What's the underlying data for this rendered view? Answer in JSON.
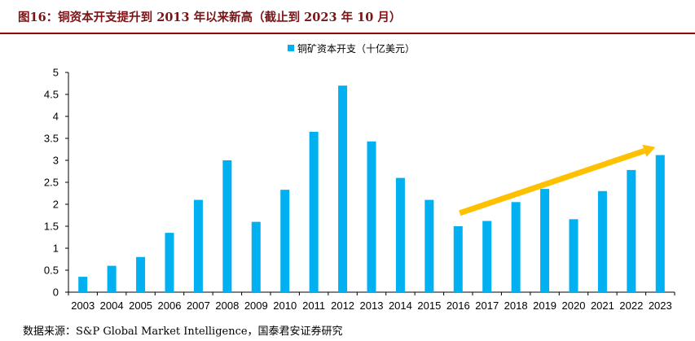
{
  "figure": {
    "title": "图16：铜资本开支提升到 2013 年以来新高（截止到 2023 年 10 月）",
    "source": "数据来源：S&P Global Market Intelligence，国泰君安证券研究"
  },
  "colors": {
    "bar": "#00b0f0",
    "arrow": "#ffc000",
    "title": "#7b1416",
    "rule": "#8b0000"
  },
  "chart_data": {
    "type": "bar",
    "categories": [
      "2003",
      "2004",
      "2005",
      "2006",
      "2007",
      "2008",
      "2009",
      "2010",
      "2011",
      "2012",
      "2013",
      "2014",
      "2015",
      "2016",
      "2017",
      "2018",
      "2019",
      "2020",
      "2021",
      "2022",
      "2023"
    ],
    "series": [
      {
        "name": "铜矿资本开支（十亿美元）",
        "values": [
          0.35,
          0.6,
          0.8,
          1.35,
          2.1,
          3.0,
          1.6,
          2.33,
          3.65,
          4.7,
          3.43,
          2.6,
          2.1,
          1.5,
          1.62,
          2.05,
          2.35,
          1.66,
          2.3,
          2.78,
          3.12
        ]
      }
    ],
    "ylim": [
      0,
      5
    ],
    "yticks": [
      "0",
      "0.5",
      "1",
      "1.5",
      "2",
      "2.5",
      "3",
      "3.5",
      "4",
      "4.5",
      "5"
    ],
    "legend_position": "top-center",
    "grid": false,
    "annotation": {
      "type": "trend-arrow",
      "from_category": "2016",
      "to_category": "2023",
      "from_value": 1.8,
      "to_value": 3.3
    }
  }
}
